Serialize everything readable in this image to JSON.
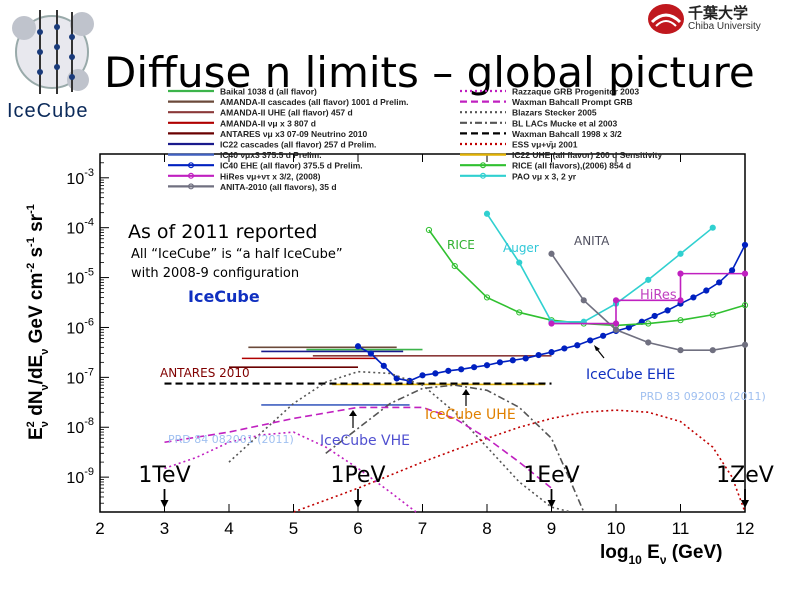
{
  "slide": {
    "title": "Diffuse n limits – global picture",
    "logo_text": "IceCube",
    "university_jp": "千葉大学",
    "university_en": "Chiba University"
  },
  "chart_data": {
    "type": "line",
    "title": "",
    "xlabel": "log10 Eν (GeV)",
    "ylabel": "E²ν dNν/dEν GeV cm⁻² s⁻¹ sr⁻¹",
    "xlim": [
      2,
      12
    ],
    "ylim": [
      2e-10,
      0.003
    ],
    "ylog": true,
    "x_ticks": [
      "2",
      "3",
      "4",
      "5",
      "6",
      "7",
      "8",
      "9",
      "10",
      "11",
      "12"
    ],
    "y_ticks": [
      "10^-9",
      "10^-8",
      "10^-7",
      "10^-6",
      "10^-5",
      "10^-4",
      "10^-3"
    ],
    "legend_left": [
      {
        "label": "Baikal 1038 d (all flavor)",
        "color": "#3cb44b",
        "style": "solid"
      },
      {
        "label": "AMANDA-II cascades (all flavor) 1001 d Prelim.",
        "color": "#6b4a3a",
        "style": "solid"
      },
      {
        "label": "AMANDA-II UHE (all flavor) 457 d",
        "color": "#8b3a3a",
        "style": "solid"
      },
      {
        "label": "AMANDA-II νμ x 3 807 d",
        "color": "#b00000",
        "style": "solid"
      },
      {
        "label": "ANTARES νμ x3 07-09 Neutrino 2010",
        "color": "#6a0000",
        "style": "solid"
      },
      {
        "label": "IC22 cascades (all flavor) 257 d Prelim.",
        "color": "#1a1a8c",
        "style": "solid"
      },
      {
        "label": "IC40 νμx3 375.5 d Prelim.",
        "color": "#4060c0",
        "style": "solid"
      },
      {
        "label": "IC40 EHE (all flavor) 375.5 d Prelim.",
        "color": "#0020c0",
        "style": "marker"
      },
      {
        "label": "HiRes νμ+ντ x 3/2, (2008)",
        "color": "#c020c0",
        "style": "marker"
      },
      {
        "label": "ANITA-2010 (all flavors), 35 d",
        "color": "#707080",
        "style": "marker"
      }
    ],
    "legend_right": [
      {
        "label": "Razzaque GRB Progenitor 2003",
        "color": "#c020c0",
        "style": "dotted"
      },
      {
        "label": "Waxman Bahcall Prompt GRB",
        "color": "#c020c0",
        "style": "dashed"
      },
      {
        "label": "Blazars Stecker 2005",
        "color": "#555555",
        "style": "dotted"
      },
      {
        "label": "BL LACs Mucke et al 2003",
        "color": "#555555",
        "style": "dashdot"
      },
      {
        "label": "Waxman Bahcall 1998 x 3/2",
        "color": "#000000",
        "style": "dashed"
      },
      {
        "label": "ESS νμ+ν̄μ 2001",
        "color": "#c00000",
        "style": "dotted"
      },
      {
        "label": "IC22 UHE (all flavor) 200 d Sensitivity",
        "color": "#e0b000",
        "style": "solid"
      },
      {
        "label": "RICE (all flavors),(2006) 854 d",
        "color": "#30c030",
        "style": "marker"
      },
      {
        "label": "PAO νμ x 3, 2 yr",
        "color": "#30d0d0",
        "style": "marker"
      }
    ],
    "annotations": [
      {
        "text": "As of 2011 reported",
        "color": "#000000"
      },
      {
        "text": "All “IceCube” is “a half IceCube”",
        "color": "#000000"
      },
      {
        "text": "with 2008-9 configuration",
        "color": "#000000"
      },
      {
        "text": "IceCube",
        "color": "#1030c0"
      },
      {
        "text": "RICE",
        "color": "#30b030"
      },
      {
        "text": "Auger",
        "color": "#30c8d8"
      },
      {
        "text": "ANITA",
        "color": "#505060"
      },
      {
        "text": "HiRes",
        "color": "#c040c0"
      },
      {
        "text": "ANTARES 2010",
        "color": "#800000"
      },
      {
        "text": "IceCube EHE",
        "color": "#1030c0"
      },
      {
        "text": "IceCube UHE",
        "color": "#e08000"
      },
      {
        "text": "IceCube VHE",
        "color": "#5050d0"
      },
      {
        "text": "PRD 83 092003 (2011)",
        "color": "#a0c0f0"
      },
      {
        "text": "PRD 84 082001 (2011)",
        "color": "#a0c0f0"
      }
    ],
    "energy_markers": [
      {
        "label": "1TeV",
        "x": 3
      },
      {
        "label": "1PeV",
        "x": 6
      },
      {
        "label": "1EeV",
        "x": 9
      },
      {
        "label": "1ZeV",
        "x": 12
      }
    ],
    "series": [
      {
        "name": "Baikal 1038 d (all flavor)",
        "color": "#3cb44b",
        "x": [
          5.2,
          7.0
        ],
        "y": [
          3.6e-07,
          3.6e-07
        ]
      },
      {
        "name": "AMANDA-II cascades (all flavor) 1001 d Prelim.",
        "color": "#6b4a3a",
        "x": [
          4.3,
          6.6
        ],
        "y": [
          4e-07,
          4e-07
        ]
      },
      {
        "name": "AMANDA-II UHE (all flavor) 457 d",
        "color": "#8b3a3a",
        "x": [
          5.3,
          9.0
        ],
        "y": [
          2.7e-07,
          2.7e-07
        ]
      },
      {
        "name": "AMANDA-II νμ x 3 807 d",
        "color": "#b00000",
        "x": [
          4.2,
          6.3
        ],
        "y": [
          2.4e-07,
          2.4e-07
        ]
      },
      {
        "name": "ANTARES νμ x3 07-09 Neutrino 2010",
        "color": "#6a0000",
        "x": [
          4.0,
          6.0
        ],
        "y": [
          1.6e-07,
          1.6e-07
        ]
      },
      {
        "name": "IC22 cascades (all flavor) 257 d Prelim.",
        "color": "#1a1a8c",
        "x": [
          4.5,
          6.7
        ],
        "y": [
          3.3e-07,
          3.3e-07
        ]
      },
      {
        "name": "IC40 νμx3 375.5 d Prelim.",
        "color": "#4060c0",
        "x": [
          4.5,
          6.8
        ],
        "y": [
          2.8e-08,
          2.8e-08
        ]
      },
      {
        "name": "IC22 UHE (all flavor) 200 d Sensitivity",
        "color": "#e0b000",
        "x": [
          5.6,
          8.9
        ],
        "y": [
          7.2e-08,
          7.2e-08
        ]
      },
      {
        "name": "Waxman Bahcall 1998 x 3/2",
        "color": "#000000",
        "x": [
          3.0,
          9.0
        ],
        "y": [
          7.5e-08,
          7.5e-08
        ]
      },
      {
        "name": "IC40 EHE (all flavor) 375.5 d Prelim.",
        "color": "#0020c0",
        "x": [
          6.0,
          6.2,
          6.4,
          6.6,
          6.8,
          7.0,
          7.2,
          7.4,
          7.6,
          7.8,
          8.0,
          8.2,
          8.4,
          8.6,
          8.8,
          9.0,
          9.2,
          9.4,
          9.6,
          9.8,
          10.0,
          10.2,
          10.4,
          10.6,
          10.8,
          11.0,
          11.2,
          11.4,
          11.6,
          11.8,
          12.0
        ],
        "y": [
          4.2e-07,
          3e-07,
          1.7e-07,
          9.5e-08,
          8.5e-08,
          1.1e-07,
          1.2e-07,
          1.35e-07,
          1.45e-07,
          1.6e-07,
          1.75e-07,
          2e-07,
          2.2e-07,
          2.4e-07,
          2.8e-07,
          3.2e-07,
          3.8e-07,
          4.4e-07,
          5.5e-07,
          6.8e-07,
          8.5e-07,
          1e-06,
          1.3e-06,
          1.7e-06,
          2.2e-06,
          3e-06,
          4e-06,
          5.5e-06,
          8e-06,
          1.4e-05,
          4.5e-05
        ]
      },
      {
        "name": "RICE (all flavors),(2006) 854 d",
        "color": "#30c030",
        "x": [
          7.1,
          7.5,
          8.0,
          8.5,
          9.0,
          9.5,
          10.0,
          10.5,
          11.0,
          11.5,
          12.0
        ],
        "y": [
          9e-05,
          1.7e-05,
          4e-06,
          2e-06,
          1.4e-06,
          1.2e-06,
          1.1e-06,
          1.2e-06,
          1.4e-06,
          1.8e-06,
          2.8e-06
        ]
      },
      {
        "name": "PAO νμ x 3, 2 yr",
        "color": "#30d0d0",
        "x": [
          8.0,
          8.5,
          9.0,
          9.5,
          10.0,
          10.5,
          11.0,
          11.5
        ],
        "y": [
          0.00019,
          2e-05,
          1.3e-06,
          1.3e-06,
          3e-06,
          9e-06,
          3e-05,
          0.0001
        ]
      },
      {
        "name": "ANITA-2010 (all flavors), 35 d",
        "color": "#707080",
        "x": [
          9.0,
          9.5,
          10.0,
          10.5,
          11.0,
          11.5,
          12.0
        ],
        "y": [
          3e-05,
          3.5e-06,
          9e-07,
          5e-07,
          3.5e-07,
          3.5e-07,
          4.5e-07
        ]
      },
      {
        "name": "HiRes νμ+ντ x 3/2, (2008)",
        "color": "#c020c0",
        "x": [
          9.0,
          10.0,
          10.0,
          11.0,
          11.0,
          12.0
        ],
        "y": [
          1.2e-06,
          1.2e-06,
          3.5e-06,
          3.5e-06,
          1.2e-05,
          1.2e-05
        ]
      },
      {
        "name": "Blazars Stecker 2005",
        "color": "#555555",
        "x": [
          4.0,
          5.0,
          5.5,
          6.0,
          6.5,
          7.0,
          7.5,
          8.0,
          8.5,
          9.0,
          9.3
        ],
        "y": [
          2e-09,
          3e-08,
          8e-08,
          1.3e-07,
          1.2e-07,
          7e-08,
          2e-08,
          4e-09,
          8e-10,
          2.5e-10,
          2e-10
        ]
      },
      {
        "name": "BL LACs Mucke et al 2003",
        "color": "#555555",
        "x": [
          5.5,
          6.5,
          7.0,
          7.5,
          8.0,
          8.5,
          9.0,
          9.3,
          9.5
        ],
        "y": [
          3e-09,
          3e-08,
          6e-08,
          7e-08,
          5.5e-08,
          2.5e-08,
          6e-09,
          8e-10,
          2e-10
        ]
      },
      {
        "name": "ESS νμ+ν̄μ 2001",
        "color": "#c00000",
        "x": [
          5.0,
          6.0,
          7.0,
          7.5,
          8.0,
          8.5,
          9.0,
          9.5,
          10.0,
          10.5,
          11.0,
          11.5,
          11.8,
          12.0
        ],
        "y": [
          2e-10,
          6e-10,
          2e-09,
          3.5e-09,
          6e-09,
          1e-08,
          1.5e-08,
          2e-08,
          2.2e-08,
          2e-08,
          1.3e-08,
          4e-09,
          1e-09,
          2e-10
        ]
      },
      {
        "name": "Waxman Bahcall Prompt GRB",
        "color": "#c020c0",
        "x": [
          3.0,
          4.0,
          5.0,
          6.0,
          7.0,
          7.5,
          8.0,
          8.5,
          9.0
        ],
        "y": [
          5e-09,
          8e-09,
          1.5e-08,
          2.5e-08,
          2.5e-08,
          1.5e-08,
          6e-09,
          2e-09,
          6e-10
        ]
      },
      {
        "name": "Razzaque GRB Progenitor 2003",
        "color": "#c020c0",
        "x": [
          3.0,
          3.5,
          4.0,
          4.5,
          5.0,
          5.5,
          6.0,
          6.5,
          6.9
        ],
        "y": [
          1.5e-09,
          2.5e-09,
          5e-09,
          7e-09,
          8e-09,
          4e-09,
          1.5e-09,
          5e-10,
          2e-10
        ]
      }
    ]
  }
}
